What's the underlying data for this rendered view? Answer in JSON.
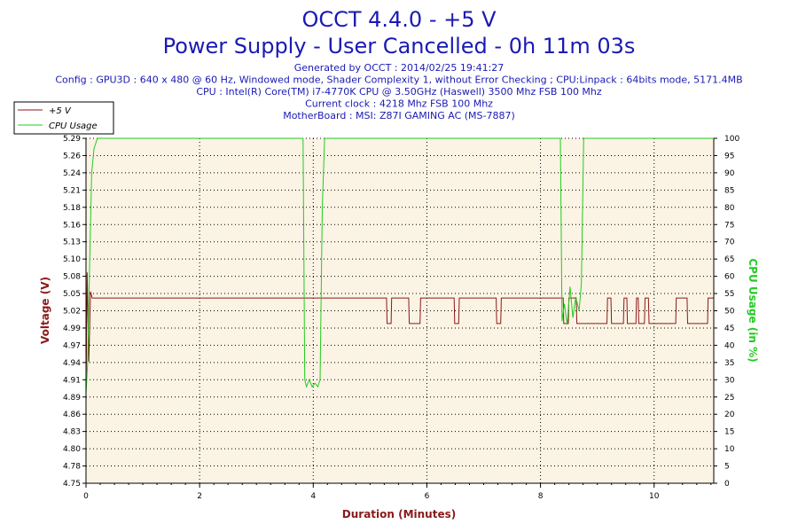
{
  "header": {
    "title": "OCCT 4.4.0 - +5 V",
    "subtitle": "Power Supply - User Cancelled - 0h 11m 03s",
    "info_lines": [
      "Generated by OCCT : 2014/02/25 19:41:27",
      "Config : GPU3D : 640 x 480 @ 60 Hz, Windowed mode, Shader Complexity 1, without Error Checking ; CPU:Linpack : 64bits mode, 5171.4MB",
      "CPU : Intel(R) Core(TM) i7-4770K CPU @ 3.50GHz (Haswell) 3500 Mhz FSB 100 Mhz",
      "Current clock : 4218 Mhz FSB 100 Mhz",
      "MotherBoard : MSI: Z87I GAMING AC (MS-7887)"
    ]
  },
  "colors": {
    "title": "#1a1ab4",
    "plot_bg": "#fbf3e4",
    "voltage": "#8b1a1a",
    "cpu": "#22cc22",
    "grid": "#000000"
  },
  "chart_data": {
    "type": "line",
    "xlabel": "Duration (Minutes)",
    "ylabel_left": "Voltage (V)",
    "ylabel_right": "CPU Usage (in %)",
    "xlim": [
      0,
      11.05
    ],
    "ylim_left": [
      4.75,
      5.29
    ],
    "ylim_right": [
      0,
      100
    ],
    "x_ticks": [
      0,
      2,
      4,
      6,
      8,
      10
    ],
    "y_ticks_left": [
      "4.75",
      "4.78",
      "4.80",
      "4.83",
      "4.86",
      "4.89",
      "4.91",
      "4.94",
      "4.97",
      "4.99",
      "5.02",
      "5.05",
      "5.08",
      "5.10",
      "5.13",
      "5.16",
      "5.18",
      "5.21",
      "5.24",
      "5.26",
      "5.29"
    ],
    "y_ticks_right": [
      0,
      5,
      10,
      15,
      20,
      25,
      30,
      35,
      40,
      45,
      50,
      55,
      60,
      65,
      70,
      75,
      80,
      85,
      90,
      95,
      100
    ],
    "grid": true,
    "legend_position": "top-left",
    "series": [
      {
        "name": "+5 V",
        "axis": "left",
        "x": [
          0,
          0.02,
          0.05,
          0.08,
          0.11,
          5.29,
          5.3,
          5.37,
          5.38,
          5.68,
          5.69,
          5.88,
          5.89,
          6.48,
          6.49,
          6.56,
          6.57,
          7.22,
          7.23,
          7.3,
          7.31,
          8.4,
          8.41,
          8.49,
          8.5,
          8.63,
          8.64,
          9.17,
          9.18,
          9.24,
          9.25,
          9.46,
          9.47,
          9.52,
          9.53,
          9.68,
          9.69,
          9.72,
          9.73,
          9.83,
          9.84,
          9.9,
          9.91,
          10.38,
          10.39,
          10.58,
          10.59,
          10.94,
          10.95,
          11.05
        ],
        "y": [
          4.89,
          5.08,
          4.94,
          5.05,
          5.04,
          5.04,
          5.0,
          5.0,
          5.04,
          5.04,
          5.0,
          5.0,
          5.04,
          5.04,
          5.0,
          5.0,
          5.04,
          5.04,
          5.0,
          5.0,
          5.04,
          5.04,
          5.0,
          5.0,
          5.04,
          5.04,
          5.0,
          5.0,
          5.04,
          5.04,
          5.0,
          5.0,
          5.04,
          5.04,
          5.0,
          5.0,
          5.04,
          5.04,
          5.0,
          5.0,
          5.04,
          5.04,
          5.0,
          5.0,
          5.04,
          5.04,
          5.0,
          5.0,
          5.04,
          5.04
        ]
      },
      {
        "name": "CPU Usage",
        "axis": "right",
        "x": [
          0,
          0.03,
          0.06,
          0.1,
          0.14,
          0.2,
          3.82,
          3.85,
          3.88,
          3.93,
          3.98,
          4.03,
          4.08,
          4.12,
          4.16,
          4.2,
          8.35,
          8.38,
          8.42,
          8.47,
          8.52,
          8.57,
          8.62,
          8.68,
          8.72,
          8.76,
          11.05
        ],
        "y": [
          26,
          35,
          60,
          90,
          97,
          100,
          100,
          30,
          28,
          30,
          28,
          29,
          28,
          30,
          80,
          100,
          100,
          47,
          52,
          46,
          57,
          48,
          54,
          50,
          58,
          100,
          100
        ]
      }
    ]
  }
}
